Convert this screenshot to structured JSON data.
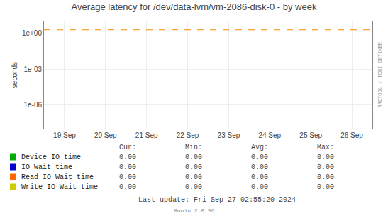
{
  "chart_data": {
    "type": "line",
    "title": "Average latency for /dev/data-lvm/vm-2086-disk-0 - by week",
    "ylabel": "seconds",
    "categories": [
      "19 Sep",
      "20 Sep",
      "21 Sep",
      "22 Sep",
      "23 Sep",
      "24 Sep",
      "25 Sep",
      "26 Sep"
    ],
    "series": [
      {
        "name": "Device IO time",
        "color": "#00aa00",
        "values": [
          null,
          null,
          null,
          null,
          null,
          null,
          null,
          null
        ],
        "stats": [
          {
            "value": 0,
            "label": "0.00"
          },
          {
            "value": 0,
            "label": "0.00"
          },
          {
            "value": 0,
            "label": "0.00"
          },
          {
            "value": 0,
            "label": "0.00"
          }
        ]
      },
      {
        "name": "IO Wait time",
        "color": "#0000cc",
        "values": [
          null,
          null,
          null,
          null,
          null,
          null,
          null,
          null
        ],
        "stats": [
          {
            "value": 0,
            "label": "0.00"
          },
          {
            "value": 0,
            "label": "0.00"
          },
          {
            "value": 0,
            "label": "0.00"
          },
          {
            "value": 0,
            "label": "0.00"
          }
        ]
      },
      {
        "name": "Read IO Wait time",
        "color": "#ff6600",
        "values": [
          null,
          null,
          null,
          null,
          null,
          null,
          null,
          null
        ],
        "stats": [
          {
            "value": 0,
            "label": "0.00"
          },
          {
            "value": 0,
            "label": "0.00"
          },
          {
            "value": 0,
            "label": "0.00"
          },
          {
            "value": 0,
            "label": "0.00"
          }
        ]
      },
      {
        "name": "Write IO Wait time",
        "color": "#cccc00",
        "values": [
          null,
          null,
          null,
          null,
          null,
          null,
          null,
          null
        ],
        "stats": [
          {
            "value": 0,
            "label": "0.00"
          },
          {
            "value": 0,
            "label": "0.00"
          },
          {
            "value": 0,
            "label": "0.00"
          },
          {
            "value": 0,
            "label": "0.00"
          }
        ]
      }
    ],
    "stats_headers": [
      "Cur:",
      "Min:",
      "Avg:",
      "Max:"
    ],
    "log": "y",
    "ylim": [
      1e-08,
      10
    ],
    "yticks": [
      {
        "value": 1e-06,
        "label": "1e-06"
      },
      {
        "value": 0.001,
        "label": "1e-03"
      },
      {
        "value": 1,
        "label": "1e+00"
      }
    ],
    "grid": true,
    "reference_lines": [
      {
        "value": 2.0,
        "color": "#ff8800",
        "line_style": "dashed"
      }
    ],
    "annotations": [
      "RRDTOOL / TOBI OETIKER",
      "Last update: Fri Sep 27 02:55:20 2024",
      "Munin 2.0.56"
    ]
  }
}
